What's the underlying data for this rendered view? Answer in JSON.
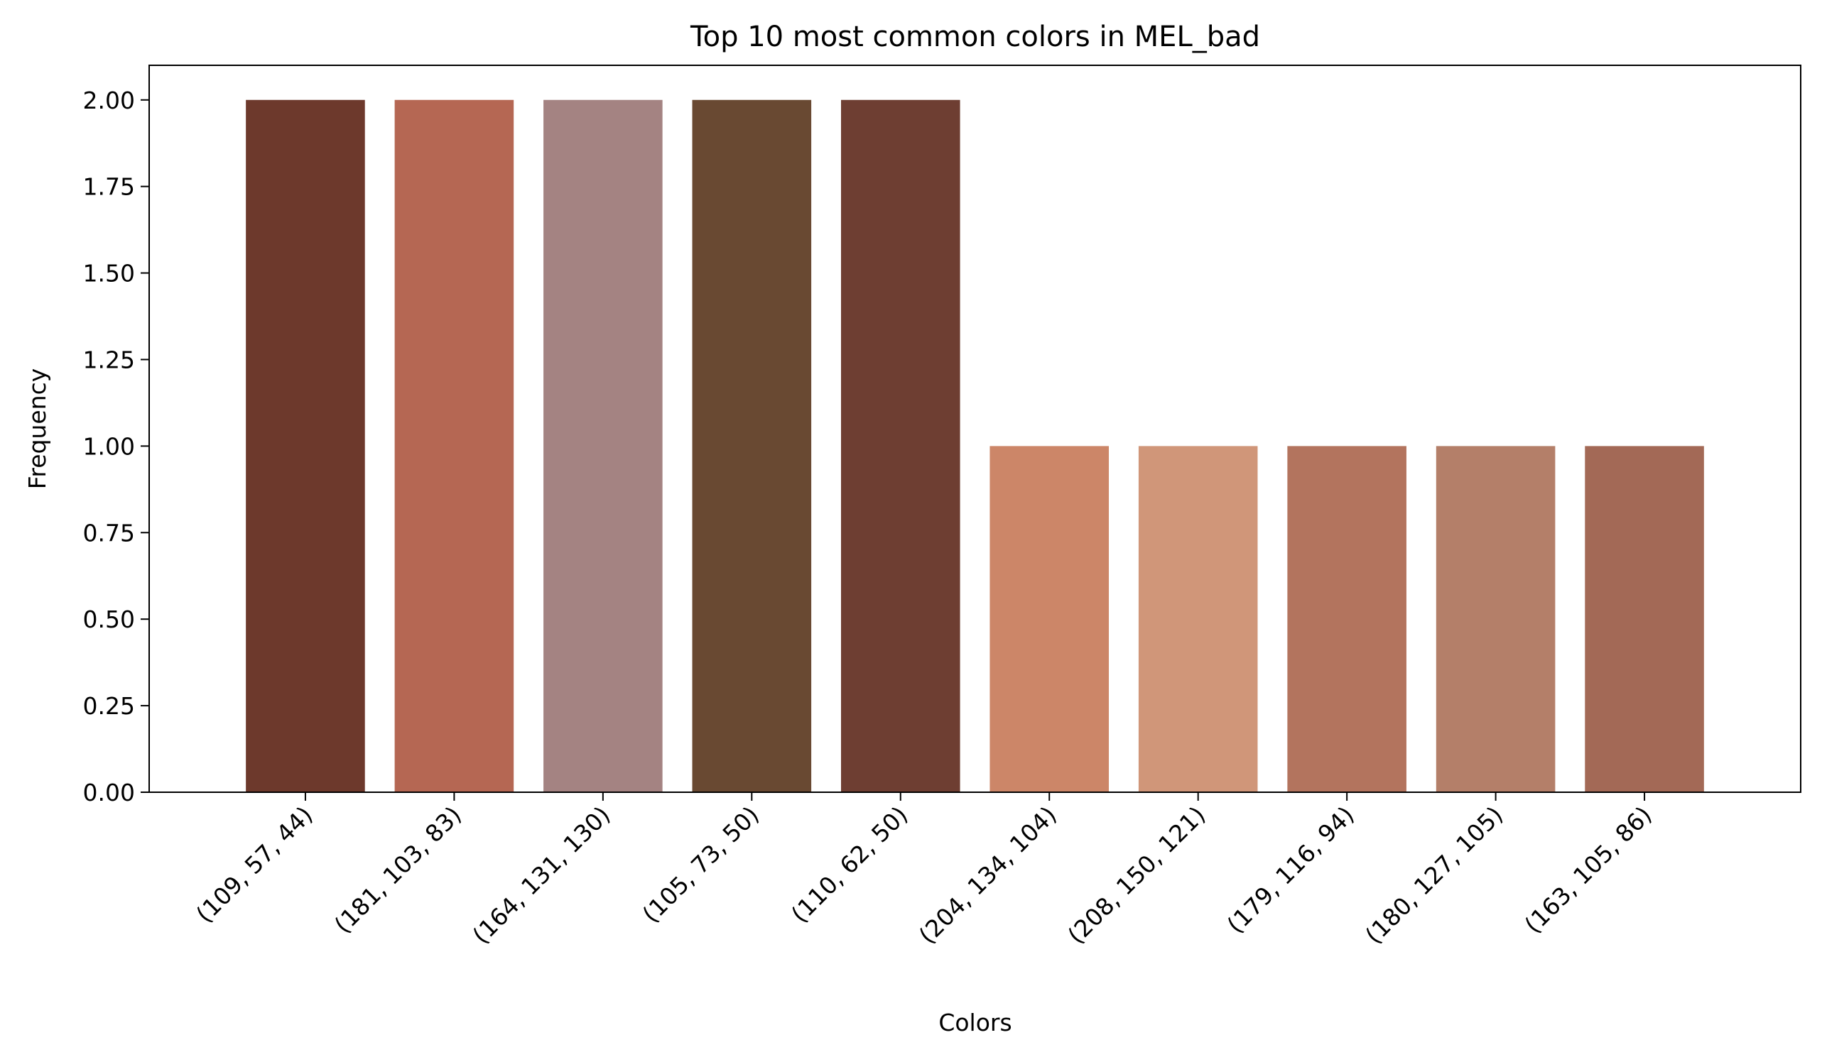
{
  "chart_data": {
    "type": "bar",
    "title": "Top 10 most common colors in MEL_bad",
    "xlabel": "Colors",
    "ylabel": "Frequency",
    "ylim": [
      0,
      2.1
    ],
    "yticks": [
      "0.00",
      "0.25",
      "0.50",
      "0.75",
      "1.00",
      "1.25",
      "1.50",
      "1.75",
      "2.00"
    ],
    "grid": false,
    "legend": "none",
    "categories": [
      "(109, 57, 44)",
      "(181, 103, 83)",
      "(164, 131, 130)",
      "(105, 73, 50)",
      "(110, 62, 50)",
      "(204, 134, 104)",
      "(208, 150, 121)",
      "(179, 116, 94)",
      "(180, 127, 105)",
      "(163, 105, 86)"
    ],
    "values": [
      2,
      2,
      2,
      2,
      2,
      1,
      1,
      1,
      1,
      1
    ],
    "colors": [
      "#6d392c",
      "#b56753",
      "#a48382",
      "#694932",
      "#6e3e32",
      "#cc8668",
      "#d09679",
      "#b3745e",
      "#b47f69",
      "#a36956"
    ]
  }
}
